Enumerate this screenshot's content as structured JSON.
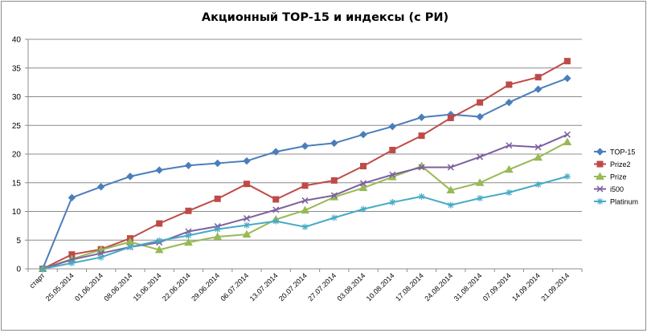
{
  "chart_data": {
    "type": "line",
    "title": "Акционный TOP-15 и индексы (с РИ)",
    "xlabel": "",
    "ylabel": "",
    "ylim": [
      0,
      40
    ],
    "yticks": [
      "0",
      "5",
      "10",
      "15",
      "20",
      "25",
      "30",
      "35",
      "40"
    ],
    "grid": true,
    "legend_position": "right",
    "categories": [
      "старт",
      "25.05.2014",
      "01.06.2014",
      "08.06.2014",
      "15.06.2014",
      "22.06.2014",
      "29.06.2014",
      "06.07.2014",
      "13.07.2014",
      "20.07.2014",
      "27.07.2014",
      "03.08.2014",
      "10.08.2014",
      "17.08.2014",
      "24.08.2014",
      "31.08.2014",
      "07.09.2014",
      "14.09.2014",
      "21.09.2014"
    ],
    "series": [
      {
        "name": "TOP-15",
        "color": "#4a7ebb",
        "marker": "diamond",
        "values": [
          0,
          12.4,
          14.3,
          16.1,
          17.2,
          18.0,
          18.4,
          18.8,
          20.4,
          21.4,
          21.9,
          23.4,
          24.8,
          26.4,
          26.9,
          26.5,
          29.0,
          31.3,
          33.2
        ]
      },
      {
        "name": "Prize2",
        "color": "#be4b48",
        "marker": "square",
        "values": [
          0,
          2.5,
          3.4,
          5.3,
          7.9,
          10.1,
          12.2,
          14.8,
          12.1,
          14.5,
          15.4,
          17.9,
          20.7,
          23.2,
          26.3,
          29.0,
          32.1,
          33.4,
          36.2
        ]
      },
      {
        "name": "Prize",
        "color": "#98b954",
        "marker": "triangle",
        "values": [
          0,
          1.7,
          3.3,
          4.7,
          3.3,
          4.6,
          5.6,
          6.0,
          8.6,
          10.2,
          12.5,
          14.1,
          16.0,
          17.9,
          13.7,
          15.0,
          17.3,
          19.4,
          22.1
        ]
      },
      {
        "name": "i500",
        "color": "#7d60a0",
        "marker": "x",
        "values": [
          0,
          1.6,
          2.7,
          3.8,
          4.6,
          6.5,
          7.4,
          8.8,
          10.3,
          11.9,
          12.8,
          14.9,
          16.4,
          17.7,
          17.7,
          19.5,
          21.5,
          21.2,
          23.4
        ]
      },
      {
        "name": "Platinum",
        "color": "#46aac5",
        "marker": "star",
        "values": [
          0,
          1.0,
          2.0,
          3.8,
          4.9,
          5.8,
          6.9,
          7.6,
          8.3,
          7.3,
          8.9,
          10.4,
          11.6,
          12.6,
          11.1,
          12.3,
          13.3,
          14.7,
          16.1
        ]
      }
    ]
  }
}
